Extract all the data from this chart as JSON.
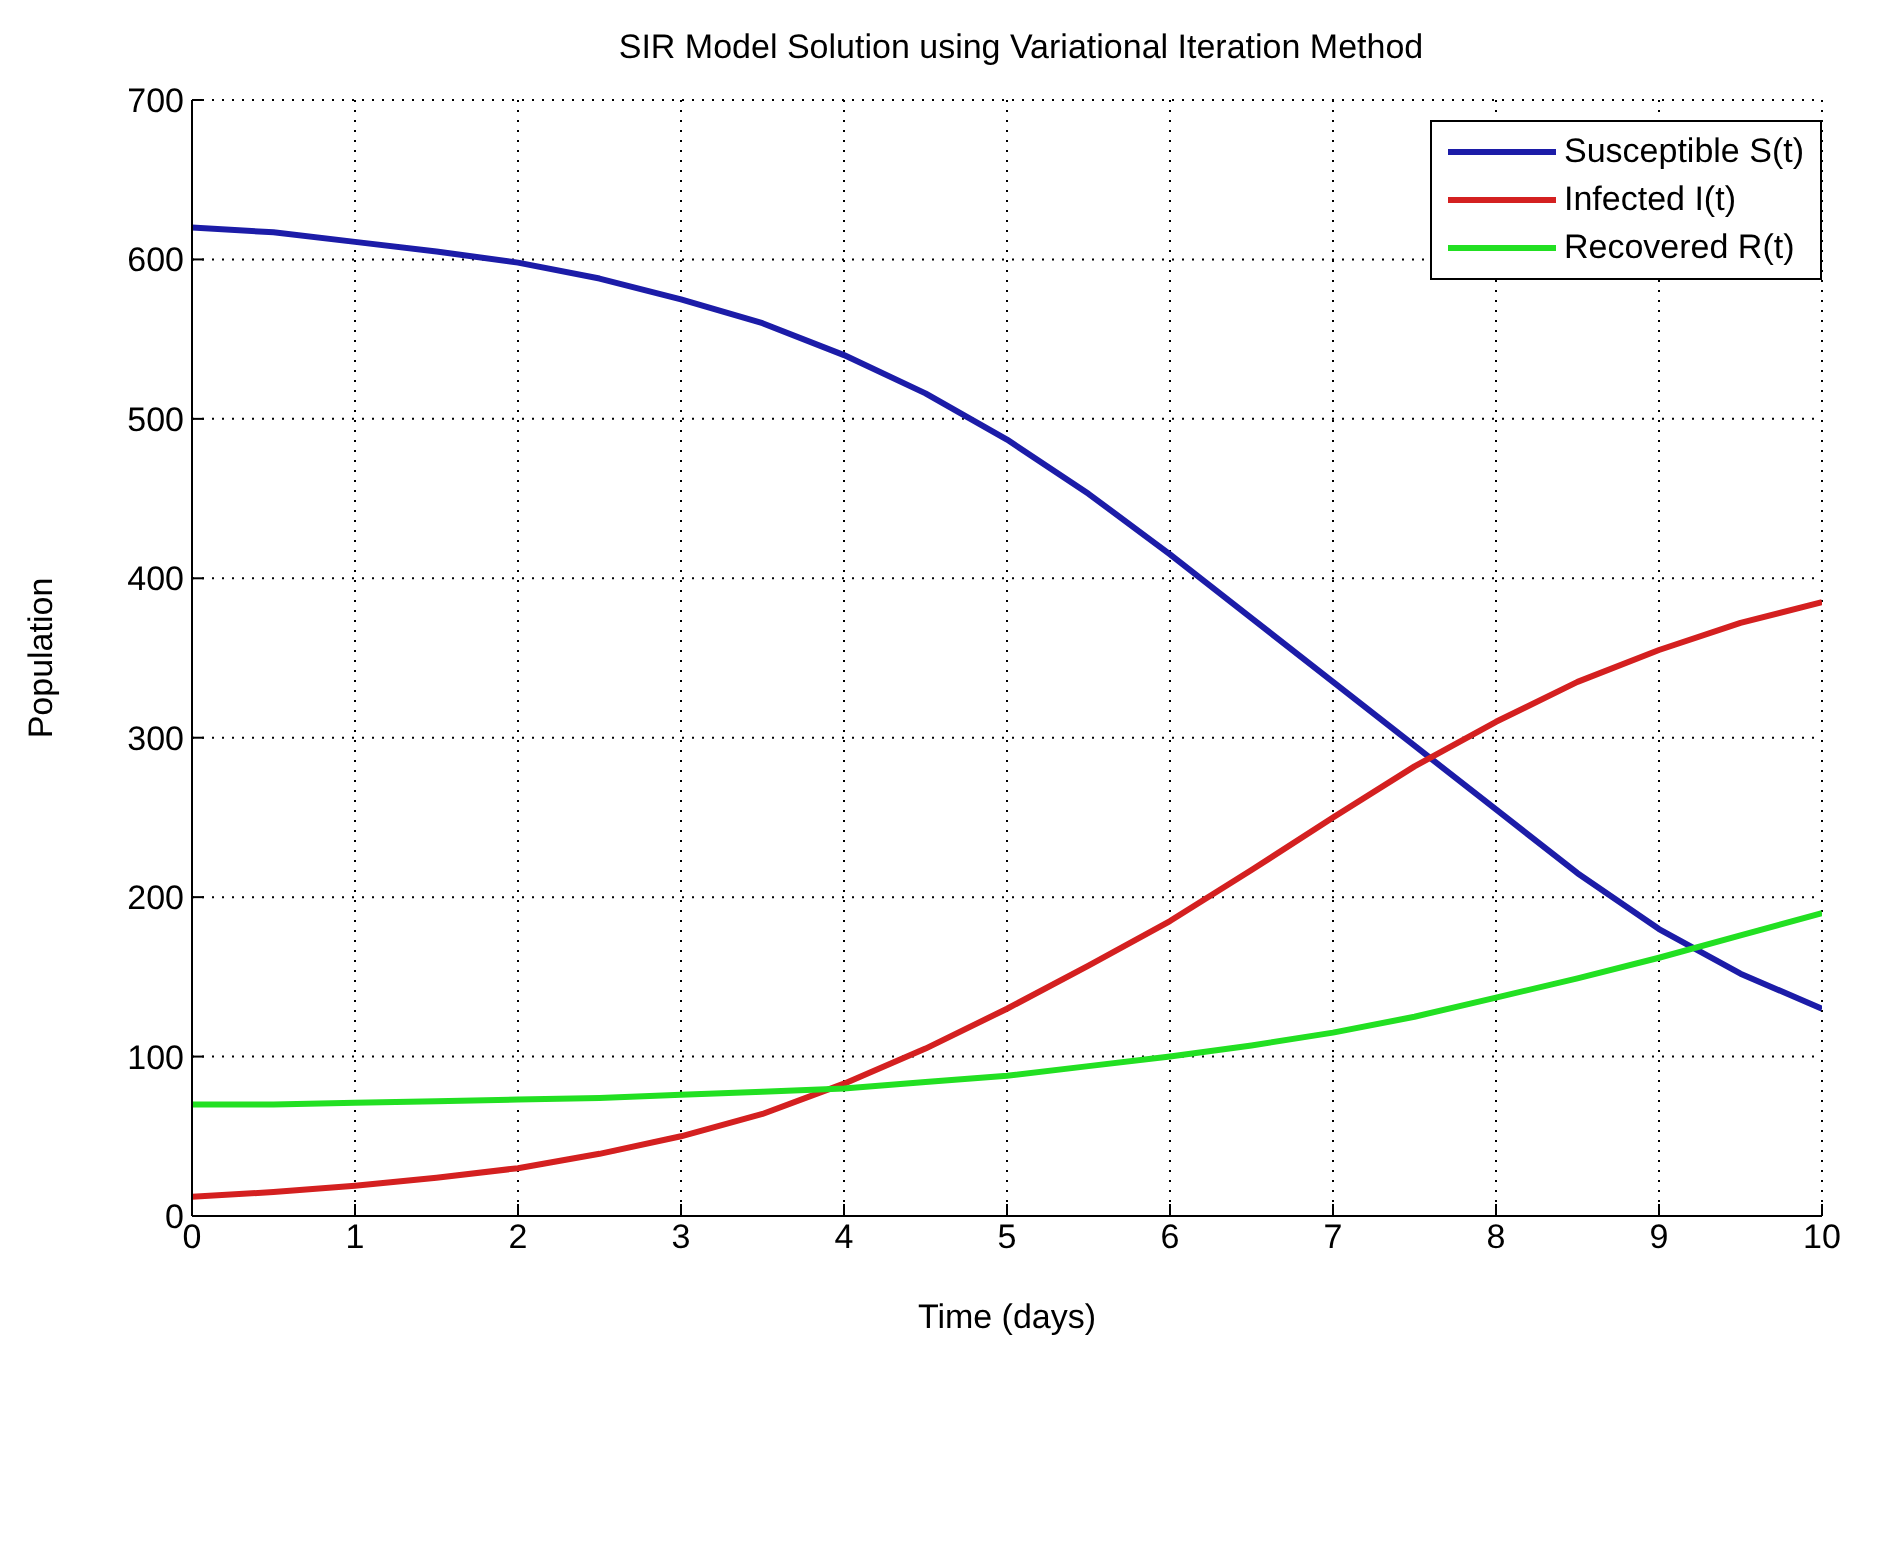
{
  "chart_data": {
    "type": "line",
    "title": "SIR Model Solution using Variational Iteration Method",
    "xlabel": "Time (days)",
    "ylabel": "Population",
    "x": [
      0,
      0.5,
      1,
      1.5,
      2,
      2.5,
      3,
      3.5,
      4,
      4.5,
      5,
      5.5,
      6,
      6.5,
      7,
      7.5,
      8,
      8.5,
      9,
      9.5,
      10
    ],
    "series": [
      {
        "name": "Susceptible S(t)",
        "color": "#1c1ca8",
        "values": [
          620,
          617,
          611,
          605,
          598,
          588,
          575,
          560,
          540,
          516,
          487,
          453,
          415,
          375,
          335,
          295,
          255,
          215,
          180,
          152,
          130
        ]
      },
      {
        "name": "Infected I(t)",
        "color": "#d42020",
        "values": [
          12,
          15,
          19,
          24,
          30,
          39,
          50,
          64,
          83,
          105,
          130,
          157,
          185,
          217,
          250,
          282,
          310,
          335,
          355,
          372,
          385
        ]
      },
      {
        "name": "Recovered R(t)",
        "color": "#22e022",
        "values": [
          70,
          70,
          71,
          72,
          73,
          74,
          76,
          78,
          80,
          84,
          88,
          94,
          100,
          107,
          115,
          125,
          137,
          149,
          162,
          176,
          190
        ]
      }
    ],
    "xlim": [
      0,
      10
    ],
    "xticks": [
      0,
      1,
      2,
      3,
      4,
      5,
      6,
      7,
      8,
      9,
      10
    ],
    "ylim": [
      0,
      700
    ],
    "yticks": [
      0,
      100,
      200,
      300,
      400,
      500,
      600,
      700
    ],
    "grid": true,
    "legend": "top right",
    "marker": "none",
    "line_style": "solid"
  }
}
